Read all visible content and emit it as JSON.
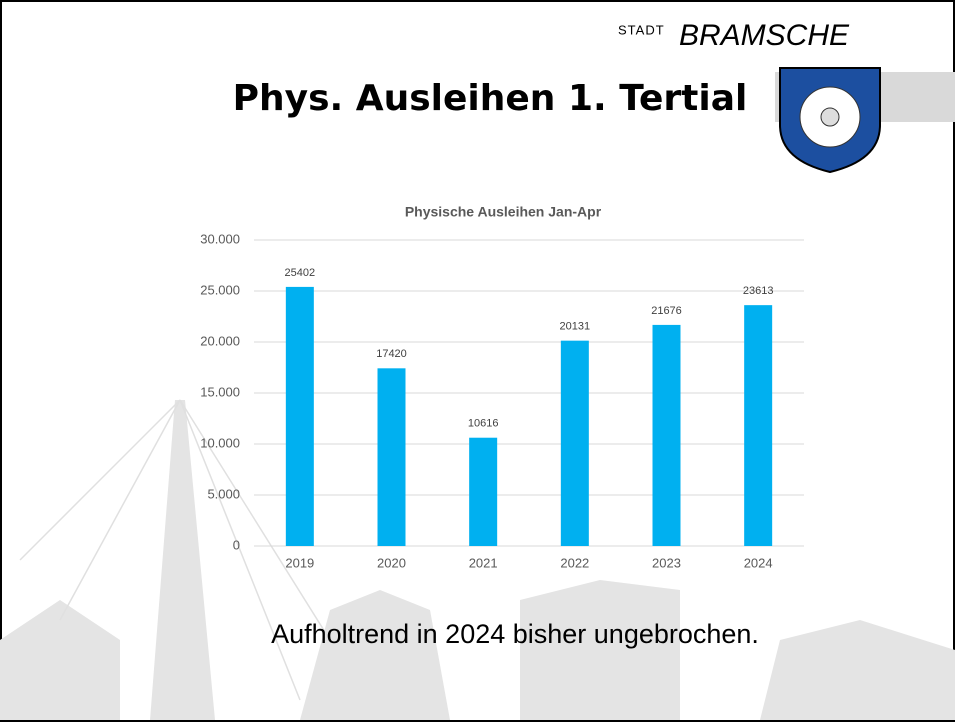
{
  "header": {
    "prefix": "STADT",
    "brand": "BRAMSCHE",
    "title": "Phys. Ausleihen 1. Tertial"
  },
  "chart_data": {
    "type": "bar",
    "title": "Physische Ausleihen Jan-Apr",
    "categories": [
      "2019",
      "2020",
      "2021",
      "2022",
      "2023",
      "2024"
    ],
    "values": [
      25402,
      17420,
      10616,
      20131,
      21676,
      23613
    ],
    "color": "#00b0f0",
    "ylim": [
      0,
      30000
    ],
    "yticks": [
      0,
      {
        "value": 5000,
        "label": "5.000"
      },
      {
        "value": 10000,
        "label": "10.000"
      },
      {
        "value": 15000,
        "label": "15.000"
      },
      {
        "value": 20000,
        "label": "20.000"
      },
      {
        "value": 25000,
        "label": "25.000"
      },
      {
        "value": 30000,
        "label": "30.000"
      }
    ],
    "grid": true
  },
  "caption": "Aufholtrend in 2024 bisher ungebrochen."
}
